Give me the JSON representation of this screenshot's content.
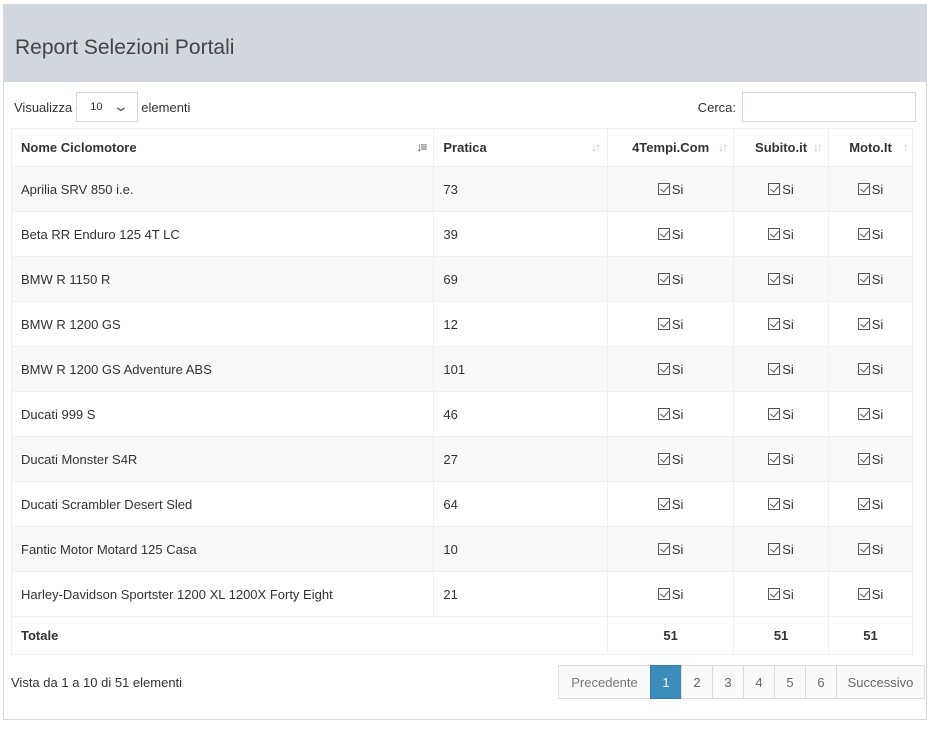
{
  "title": "Report Selezioni Portali",
  "length_control": {
    "prefix": "Visualizza",
    "value": "10",
    "suffix": "elementi"
  },
  "search": {
    "label": "Cerca:",
    "value": ""
  },
  "columns": [
    "Nome Ciclomotore",
    "Pratica",
    "4Tempi.Com",
    "Subito.it",
    "Moto.It"
  ],
  "rows": [
    {
      "name": "Aprilia SRV 850 i.e.",
      "pratica": "73",
      "p1": "Si",
      "p2": "Si",
      "p3": "Si"
    },
    {
      "name": "Beta RR Enduro 125 4T LC",
      "pratica": "39",
      "p1": "Si",
      "p2": "Si",
      "p3": "Si"
    },
    {
      "name": "BMW R 1150 R",
      "pratica": "69",
      "p1": "Si",
      "p2": "Si",
      "p3": "Si"
    },
    {
      "name": "BMW R 1200 GS",
      "pratica": "12",
      "p1": "Si",
      "p2": "Si",
      "p3": "Si"
    },
    {
      "name": "BMW R 1200 GS Adventure ABS",
      "pratica": "101",
      "p1": "Si",
      "p2": "Si",
      "p3": "Si"
    },
    {
      "name": "Ducati 999 S",
      "pratica": "46",
      "p1": "Si",
      "p2": "Si",
      "p3": "Si"
    },
    {
      "name": "Ducati Monster S4R",
      "pratica": "27",
      "p1": "Si",
      "p2": "Si",
      "p3": "Si"
    },
    {
      "name": "Ducati Scrambler Desert Sled",
      "pratica": "64",
      "p1": "Si",
      "p2": "Si",
      "p3": "Si"
    },
    {
      "name": "Fantic Motor Motard 125 Casa",
      "pratica": "10",
      "p1": "Si",
      "p2": "Si",
      "p3": "Si"
    },
    {
      "name": "Harley-Davidson Sportster 1200 XL 1200X Forty Eight",
      "pratica": "21",
      "p1": "Si",
      "p2": "Si",
      "p3": "Si"
    }
  ],
  "footer": {
    "label": "Totale",
    "t1": "51",
    "t2": "51",
    "t3": "51"
  },
  "info": "Vista da 1 a 10 di 51 elementi",
  "pagination": {
    "prev": "Precedente",
    "pages": [
      "1",
      "2",
      "3",
      "4",
      "5",
      "6"
    ],
    "active": "1",
    "next": "Successivo"
  },
  "colors": {
    "header_bg": "#d2d6de",
    "accent": "#3c8dbc"
  }
}
